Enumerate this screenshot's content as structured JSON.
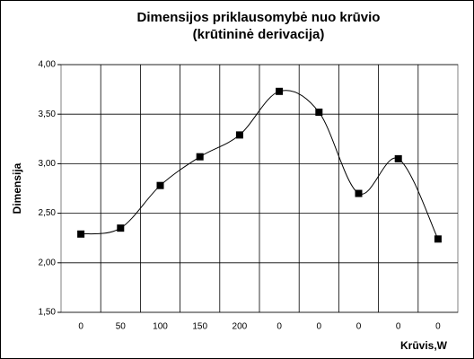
{
  "chart_data": {
    "type": "line",
    "title": [
      "Dimensijos priklausomybė nuo krūvio",
      "(krūtininė derivacija)"
    ],
    "y_label": "Dimensija",
    "x_label": "Krūvis,W",
    "categories": [
      "0",
      "50",
      "100",
      "150",
      "200",
      "0",
      "0",
      "0",
      "0",
      "0"
    ],
    "series": [
      {
        "name": "Dimensija",
        "color": "#000000",
        "values": [
          2.29,
          2.35,
          2.78,
          3.07,
          3.29,
          3.73,
          3.52,
          2.7,
          3.05,
          2.24
        ]
      }
    ],
    "ylim": [
      1.5,
      4.0
    ],
    "yticks": [
      {
        "value": 1.5,
        "label": "1,50"
      },
      {
        "value": 2.0,
        "label": "2,00"
      },
      {
        "value": 2.5,
        "label": "2,50"
      },
      {
        "value": 3.0,
        "label": "3,00"
      },
      {
        "value": 3.5,
        "label": "3,50"
      },
      {
        "value": 4.0,
        "label": "4,00"
      }
    ],
    "grid": true,
    "smooth": true
  }
}
